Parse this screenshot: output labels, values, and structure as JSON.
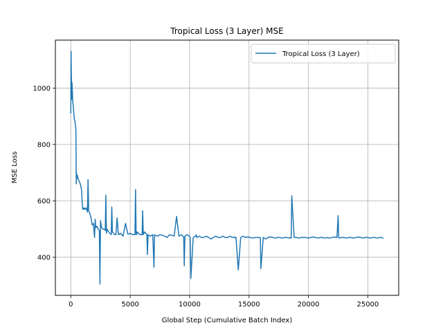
{
  "chart_data": {
    "type": "line",
    "title": "Tropical Loss (3 Layer) MSE",
    "xlabel": "Global Step (Cumulative Batch Index)",
    "ylabel": "MSE Loss",
    "xlim": [
      -1300,
      27600
    ],
    "ylim": [
      265,
      1170
    ],
    "xticks": [
      0,
      5000,
      10000,
      15000,
      20000,
      25000
    ],
    "yticks": [
      400,
      600,
      800,
      1000
    ],
    "grid": true,
    "legend_position": "top-right",
    "series": [
      {
        "name": "Tropical Loss (3 Layer)",
        "color": "#1f77b4",
        "x": [
          0,
          20,
          40,
          60,
          80,
          100,
          130,
          160,
          200,
          250,
          300,
          350,
          400,
          430,
          460,
          480,
          500,
          530,
          560,
          600,
          650,
          700,
          750,
          800,
          850,
          900,
          950,
          1000,
          1050,
          1100,
          1150,
          1200,
          1300,
          1400,
          1450,
          1500,
          1600,
          1700,
          1800,
          1900,
          2000,
          2050,
          2100,
          2200,
          2300,
          2400,
          2450,
          2500,
          2550,
          2600,
          2700,
          2800,
          2900,
          2950,
          3000,
          3050,
          3100,
          3200,
          3300,
          3400,
          3450,
          3500,
          3550,
          3600,
          3700,
          3800,
          3900,
          4000,
          4200,
          4400,
          4600,
          4800,
          5000,
          5200,
          5400,
          5450,
          5500,
          5550,
          5600,
          5800,
          6000,
          6050,
          6100,
          6150,
          6200,
          6400,
          6450,
          6500,
          6700,
          6900,
          7000,
          7050,
          7100,
          7300,
          7500,
          7700,
          7900,
          8100,
          8300,
          8500,
          8700,
          8900,
          9100,
          9300,
          9500,
          9550,
          9600,
          9800,
          10000,
          10050,
          10100,
          10300,
          10500,
          10550,
          10600,
          10800,
          11000,
          11200,
          11400,
          11600,
          11800,
          12000,
          12200,
          12400,
          12600,
          12800,
          13000,
          13200,
          13400,
          13600,
          13800,
          13850,
          13900,
          14100,
          14300,
          14500,
          14700,
          14900,
          15100,
          15300,
          15500,
          15700,
          15900,
          15950,
          16000,
          16200,
          16400,
          16600,
          16800,
          17000,
          17200,
          17400,
          17600,
          17800,
          18000,
          18200,
          18400,
          18500,
          18550,
          18600,
          18800,
          19000,
          19200,
          19400,
          19600,
          19800,
          20000,
          20200,
          20400,
          20600,
          20800,
          21000,
          21200,
          21400,
          21600,
          21800,
          22000,
          22200,
          22400,
          22500,
          22550,
          22600,
          22800,
          23000,
          23200,
          23400,
          23600,
          23800,
          24000,
          24200,
          24400,
          24600,
          24800,
          25000,
          25200,
          25400,
          25600,
          25800,
          26000,
          26200,
          26300
        ],
        "values": [
          910,
          1130,
          1060,
          1010,
          960,
          1020,
          990,
          950,
          940,
          910,
          890,
          880,
          865,
          850,
          660,
          700,
          690,
          680,
          690,
          680,
          675,
          670,
          665,
          660,
          650,
          640,
          600,
          570,
          575,
          570,
          575,
          570,
          575,
          560,
          675,
          565,
          555,
          540,
          515,
          520,
          470,
          535,
          505,
          510,
          500,
          495,
          305,
          530,
          515,
          505,
          500,
          500,
          495,
          620,
          485,
          500,
          495,
          490,
          485,
          480,
          578,
          490,
          488,
          485,
          480,
          480,
          540,
          480,
          485,
          475,
          520,
          482,
          485,
          480,
          480,
          640,
          480,
          482,
          490,
          480,
          480,
          565,
          480,
          485,
          490,
          480,
          410,
          480,
          475,
          480,
          365,
          480,
          478,
          475,
          480,
          478,
          475,
          470,
          480,
          478,
          475,
          545,
          475,
          480,
          472,
          370,
          475,
          480,
          475,
          470,
          325,
          470,
          475,
          480,
          470,
          475,
          470,
          470,
          475,
          470,
          465,
          470,
          475,
          470,
          470,
          475,
          470,
          470,
          475,
          470,
          472,
          468,
          470,
          355,
          470,
          475,
          470,
          472,
          470,
          468,
          470,
          470,
          470,
          468,
          360,
          470,
          465,
          470,
          472,
          470,
          468,
          470,
          470,
          468,
          470,
          470,
          468,
          470,
          468,
          618,
          470,
          470,
          468,
          470,
          470,
          470,
          468,
          470,
          472,
          470,
          468,
          470,
          470,
          468,
          470,
          468,
          470,
          472,
          470,
          548,
          470,
          468,
          470,
          470,
          468,
          470,
          470,
          468,
          470,
          472,
          470,
          468,
          470,
          470,
          468,
          470,
          470,
          468,
          470,
          470,
          466
        ]
      }
    ]
  }
}
